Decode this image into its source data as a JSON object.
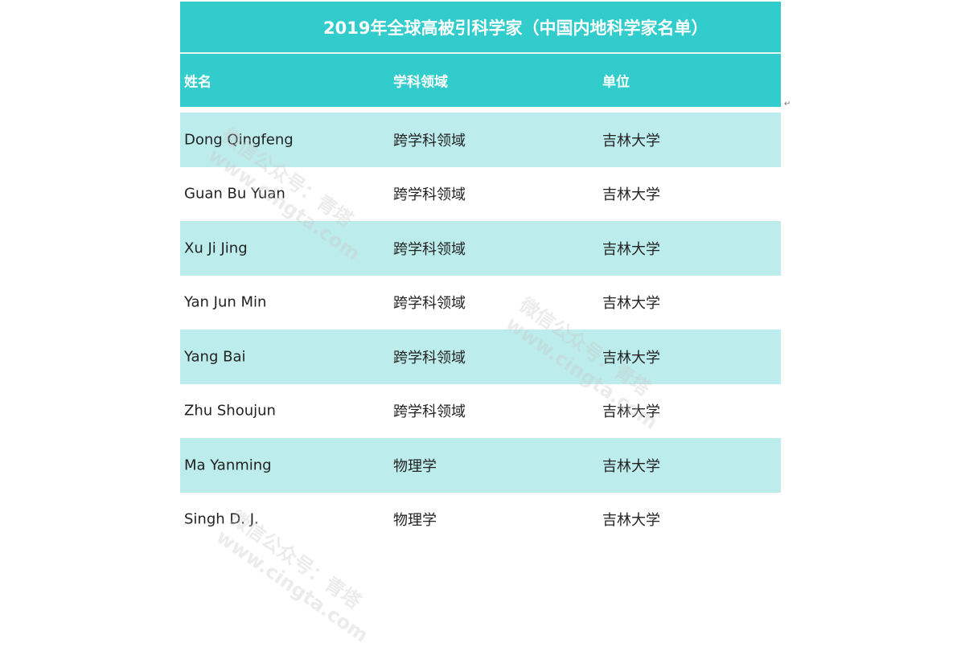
{
  "title": "2019年全球高被引科学家（中国内地科学家名单）",
  "columns": [
    "姓名",
    "学科领域",
    "单位"
  ],
  "rows": [
    [
      "Dong Qingfeng",
      "跨学科领域",
      "吉林大学"
    ],
    [
      "Guan Bu Yuan",
      "跨学科领域",
      "吉林大学"
    ],
    [
      "Xu Ji Jing",
      "跨学科领域",
      "吉林大学"
    ],
    [
      "Yan Jun Min",
      "跨学科领域",
      "吉林大学"
    ],
    [
      "Yang Bai",
      "跨学科领域",
      "吉林大学"
    ],
    [
      "Zhu Shoujun",
      "跨学科领域",
      "吉林大学"
    ],
    [
      "Ma Yanming",
      "物理学",
      "吉林大学"
    ],
    [
      "Singh D. J.",
      "物理学",
      "吉林大学"
    ]
  ],
  "watermark": {
    "line1": "微信公众号：青塔",
    "line2": "www.cingta.com"
  },
  "paragraph_mark": "↵",
  "colors": {
    "header": "#33cccc",
    "alt_row": "#bdecec"
  }
}
